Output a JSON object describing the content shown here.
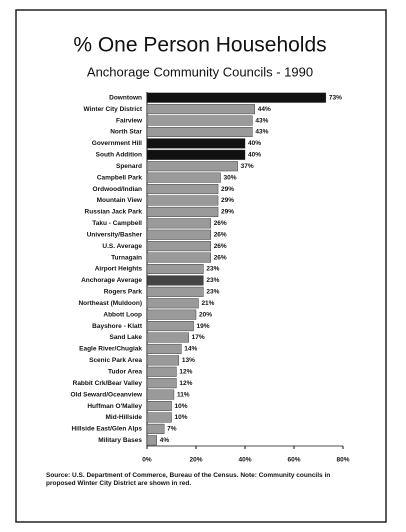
{
  "chart_data": {
    "type": "barh",
    "title": "% One Person Households",
    "subtitle": "Anchorage Community Councils - 1990",
    "categories": [
      "Downtown",
      "Winter City District",
      "Fairview",
      "North Star",
      "Government Hill",
      "South Addition",
      "Spenard",
      "Campbell Park",
      "Ordwood/Indian",
      "Mountain View",
      "Russian Jack Park",
      "Taku - Campbell",
      "University/Basher",
      "U.S. Average",
      "Turnagain",
      "Airport Heights",
      "Anchorage Average",
      "Rogers Park",
      "Northeast (Muldoon)",
      "Abbott Loop",
      "Bayshore - Klatt",
      "Sand Lake",
      "Eagle River/Chugiak",
      "Scenic Park Area",
      "Tudor Area",
      "Rabbit Crk/Bear Valley",
      "Old Seward/Oceanview",
      "Huffman O'Malley",
      "Mid-Hillside",
      "Hillside East/Glen Alps",
      "Military Bases"
    ],
    "values": [
      73,
      44,
      43,
      43,
      40,
      40,
      37,
      30,
      29,
      29,
      29,
      26,
      26,
      26,
      26,
      23,
      23,
      23,
      21,
      20,
      19,
      17,
      14,
      13,
      12,
      12,
      11,
      10,
      10,
      7,
      4
    ],
    "value_labels": [
      "73%",
      "44%",
      "43%",
      "43%",
      "40%",
      "40%",
      "37%",
      "30%",
      "29%",
      "29%",
      "29%",
      "26%",
      "26%",
      "26%",
      "26%",
      "23%",
      "23%",
      "23%",
      "21%",
      "20%",
      "19%",
      "17%",
      "14%",
      "13%",
      "12%",
      "12%",
      "11%",
      "10%",
      "10%",
      "7%",
      "4%"
    ],
    "colors": [
      "#111111",
      "#9a9a9a",
      "#9a9a9a",
      "#9a9a9a",
      "#111111",
      "#111111",
      "#9a9a9a",
      "#9a9a9a",
      "#9a9a9a",
      "#9a9a9a",
      "#9a9a9a",
      "#9a9a9a",
      "#9a9a9a",
      "#9a9a9a",
      "#9a9a9a",
      "#9a9a9a",
      "#444444",
      "#9a9a9a",
      "#9a9a9a",
      "#9a9a9a",
      "#9a9a9a",
      "#9a9a9a",
      "#9a9a9a",
      "#9a9a9a",
      "#9a9a9a",
      "#9a9a9a",
      "#9a9a9a",
      "#9a9a9a",
      "#9a9a9a",
      "#9a9a9a",
      "#9a9a9a"
    ],
    "xlim": [
      0,
      80
    ],
    "xticks": [
      {
        "value": 0,
        "label": "0%"
      },
      {
        "value": 20,
        "label": "20%"
      },
      {
        "value": 40,
        "label": "40%"
      },
      {
        "value": 60,
        "label": "60%"
      },
      {
        "value": 80,
        "label": "80%"
      }
    ],
    "note": "Source: U.S. Department of Commerce, Bureau of the Census. Note: Community councils in proposed Winter City District are shown in red."
  }
}
